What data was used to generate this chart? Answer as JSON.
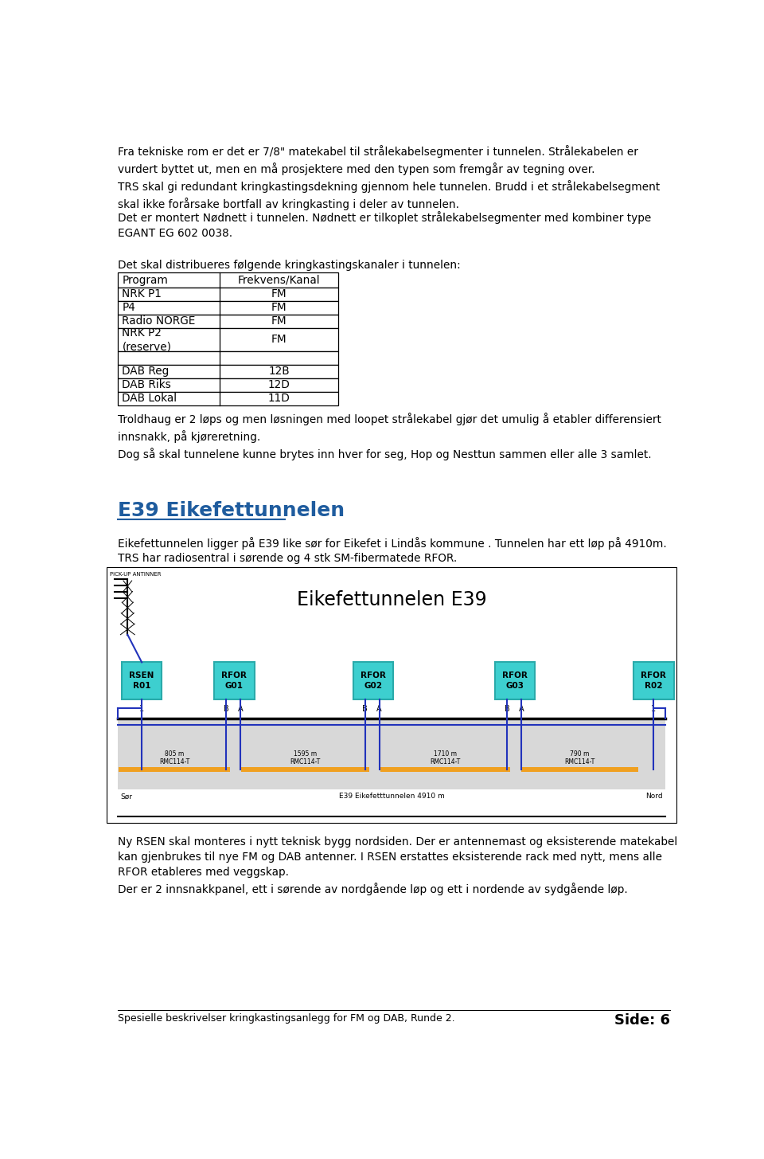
{
  "bg_color": "#ffffff",
  "text_color": "#000000",
  "heading_color": "#1f5c9e",
  "footer_left": "Spesielle beskrivelser kringkastingsanlegg for FM og DAB, Runde 2.",
  "footer_right": "Side: 6",
  "diagram_title": "Eikefettunnelen E39",
  "section_heading": "E39 Eikefettunnelen"
}
